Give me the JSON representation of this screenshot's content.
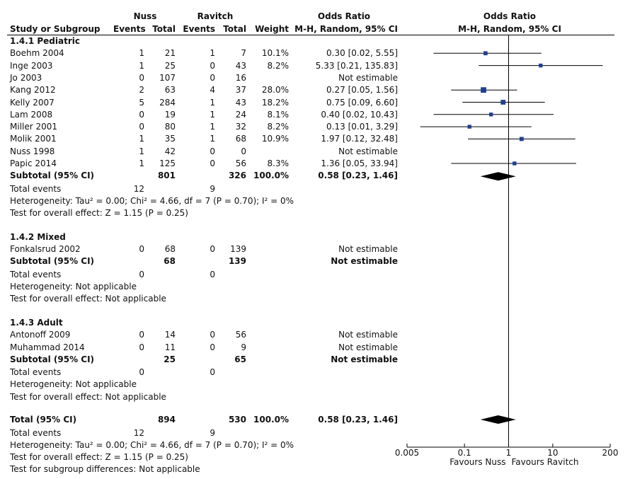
{
  "header": {
    "group1": "Nuss",
    "group2": "Ravitch",
    "or_title": "Odds Ratio",
    "col_study": "Study or Subgroup",
    "col_events1": "Events",
    "col_total1": "Total",
    "col_events2": "Events",
    "col_total2": "Total",
    "col_weight": "Weight",
    "col_method": "M-H, Random, 95% CI",
    "plot_title": "Odds Ratio",
    "plot_method": "M-H, Random, 95% CI"
  },
  "groups": [
    {
      "title": "1.4.1 Pediatric",
      "studies": [
        {
          "name": "Boehm 2004",
          "e1": "1",
          "t1": "21",
          "e2": "1",
          "t2": "7",
          "weight": "10.1%",
          "ci_text": "0.30 [0.02, 5.55]"
        },
        {
          "name": "Inge 2003",
          "e1": "1",
          "t1": "25",
          "e2": "0",
          "t2": "43",
          "weight": "8.2%",
          "ci_text": "5.33 [0.21, 135.83]"
        },
        {
          "name": "Jo 2003",
          "e1": "0",
          "t1": "107",
          "e2": "0",
          "t2": "16",
          "weight": "",
          "ci_text": "Not estimable"
        },
        {
          "name": "Kang 2012",
          "e1": "2",
          "t1": "63",
          "e2": "4",
          "t2": "37",
          "weight": "28.0%",
          "ci_text": "0.27 [0.05, 1.56]"
        },
        {
          "name": "Kelly 2007",
          "e1": "5",
          "t1": "284",
          "e2": "1",
          "t2": "43",
          "weight": "18.2%",
          "ci_text": "0.75 [0.09, 6.60]"
        },
        {
          "name": "Lam 2008",
          "e1": "0",
          "t1": "19",
          "e2": "1",
          "t2": "24",
          "weight": "8.1%",
          "ci_text": "0.40 [0.02, 10.43]"
        },
        {
          "name": "Miller 2001",
          "e1": "0",
          "t1": "80",
          "e2": "1",
          "t2": "32",
          "weight": "8.2%",
          "ci_text": "0.13 [0.01, 3.29]"
        },
        {
          "name": "Molik 2001",
          "e1": "1",
          "t1": "35",
          "e2": "1",
          "t2": "68",
          "weight": "10.9%",
          "ci_text": "1.97 [0.12, 32.48]"
        },
        {
          "name": "Nuss 1998",
          "e1": "1",
          "t1": "42",
          "e2": "0",
          "t2": "0",
          "weight": "",
          "ci_text": "Not estimable"
        },
        {
          "name": "Papic 2014",
          "e1": "1",
          "t1": "125",
          "e2": "0",
          "t2": "56",
          "weight": "8.3%",
          "ci_text": "1.36 [0.05, 33.94]"
        }
      ],
      "subtotal": {
        "label": "Subtotal (95% CI)",
        "t1": "801",
        "t2": "326",
        "weight": "100.0%",
        "ci_text": "0.58 [0.23, 1.46]"
      },
      "total_events": {
        "label": "Total events",
        "e1": "12",
        "e2": "9"
      },
      "heterogeneity": "Heterogeneity: Tau² = 0.00; Chi² = 4.66, df = 7 (P = 0.70); I² = 0%",
      "overall": "Test for overall effect: Z = 1.15 (P = 0.25)"
    },
    {
      "title": "1.4.2 Mixed",
      "studies": [
        {
          "name": "Fonkalsrud 2002",
          "e1": "0",
          "t1": "68",
          "e2": "0",
          "t2": "139",
          "weight": "",
          "ci_text": "Not estimable"
        }
      ],
      "subtotal": {
        "label": "Subtotal (95% CI)",
        "t1": "68",
        "t2": "139",
        "weight": "",
        "ci_text": "Not estimable"
      },
      "total_events": {
        "label": "Total events",
        "e1": "0",
        "e2": "0"
      },
      "heterogeneity": "Heterogeneity: Not applicable",
      "overall": "Test for overall effect: Not applicable"
    },
    {
      "title": "1.4.3 Adult",
      "studies": [
        {
          "name": "Antonoff 2009",
          "e1": "0",
          "t1": "14",
          "e2": "0",
          "t2": "56",
          "weight": "",
          "ci_text": "Not estimable"
        },
        {
          "name": "Muhammad 2014",
          "e1": "0",
          "t1": "11",
          "e2": "0",
          "t2": "9",
          "weight": "",
          "ci_text": "Not estimable"
        }
      ],
      "subtotal": {
        "label": "Subtotal (95% CI)",
        "t1": "25",
        "t2": "65",
        "weight": "",
        "ci_text": "Not estimable"
      },
      "total_events": {
        "label": "Total events",
        "e1": "0",
        "e2": "0"
      },
      "heterogeneity": "Heterogeneity: Not applicable",
      "overall": "Test for overall effect: Not applicable"
    }
  ],
  "total": {
    "label": "Total (95% CI)",
    "t1": "894",
    "t2": "530",
    "weight": "100.0%",
    "ci_text": "0.58 [0.23, 1.46]",
    "events_label": "Total events",
    "e1": "12",
    "e2": "9",
    "heterogeneity": "Heterogeneity: Tau² = 0.00; Chi² = 4.66, df = 7 (P = 0.70); I² = 0%",
    "overall": "Test for overall effect: Z = 1.15 (P = 0.25)",
    "subgroup": "Test for subgroup differences: Not applicable"
  },
  "chart_data": {
    "type": "forest",
    "scale": "log",
    "xlim": [
      0.005,
      200
    ],
    "ticks": [
      {
        "value": 0.005,
        "label": "0.005"
      },
      {
        "value": 0.1,
        "label": "0.1"
      },
      {
        "value": 1,
        "label": "1"
      },
      {
        "value": 10,
        "label": "10"
      },
      {
        "value": 200,
        "label": "200"
      }
    ],
    "favours_left": "Favours Nuss",
    "favours_right": "Favours Ravitch",
    "square_color": "#1f3f8f",
    "diamond_color": "#000000",
    "studies": [
      {
        "name": "Boehm 2004",
        "or": 0.3,
        "lo": 0.02,
        "hi": 5.55,
        "weight": 10.1
      },
      {
        "name": "Inge 2003",
        "or": 5.33,
        "lo": 0.21,
        "hi": 135.83,
        "weight": 8.2
      },
      {
        "name": "Kang 2012",
        "or": 0.27,
        "lo": 0.05,
        "hi": 1.56,
        "weight": 28.0
      },
      {
        "name": "Kelly 2007",
        "or": 0.75,
        "lo": 0.09,
        "hi": 6.6,
        "weight": 18.2
      },
      {
        "name": "Lam 2008",
        "or": 0.4,
        "lo": 0.02,
        "hi": 10.43,
        "weight": 8.1
      },
      {
        "name": "Miller 2001",
        "or": 0.13,
        "lo": 0.01,
        "hi": 3.29,
        "weight": 8.2
      },
      {
        "name": "Molik 2001",
        "or": 1.97,
        "lo": 0.12,
        "hi": 32.48,
        "weight": 10.9
      },
      {
        "name": "Papic 2014",
        "or": 1.36,
        "lo": 0.05,
        "hi": 33.94,
        "weight": 8.3
      }
    ],
    "summaries": [
      {
        "name": "Subtotal (95% CI) 1.4.1 Pediatric",
        "or": 0.58,
        "lo": 0.23,
        "hi": 1.46
      },
      {
        "name": "Total (95% CI)",
        "or": 0.58,
        "lo": 0.23,
        "hi": 1.46
      }
    ]
  }
}
